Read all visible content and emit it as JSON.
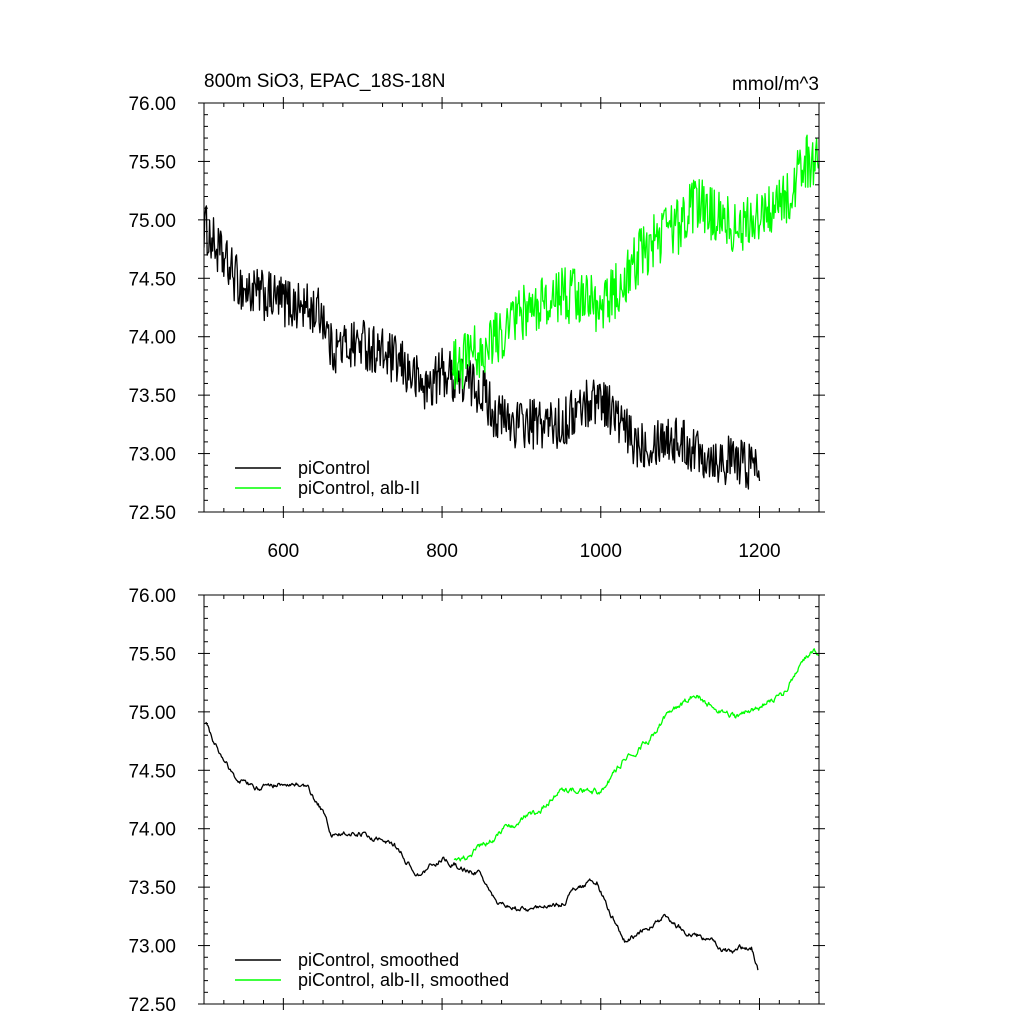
{
  "chart_data": [
    {
      "type": "line",
      "title_left": "800m SiO3, EPAC_18S-18N",
      "title_right": "mmol/m^3",
      "xlabel": "",
      "ylabel": "",
      "xlim": [
        500,
        1275
      ],
      "ylim": [
        72.5,
        76.0
      ],
      "x_ticks": [
        600,
        800,
        1000,
        1200
      ],
      "x_tick_labels": [
        "600",
        "800",
        "1000",
        "1200"
      ],
      "y_ticks": [
        72.5,
        73.0,
        73.5,
        74.0,
        74.5,
        75.0,
        75.5,
        76.0
      ],
      "y_tick_labels": [
        "72.50",
        "73.00",
        "73.50",
        "74.00",
        "74.50",
        "75.00",
        "75.50",
        "76.00"
      ],
      "legend_position": "bottom-left",
      "series": [
        {
          "name": "piControl",
          "color": "#000000",
          "x_range": [
            500,
            1200
          ],
          "anchors": [
            [
              500,
              74.95
            ],
            [
              520,
              74.7
            ],
            [
              550,
              74.4
            ],
            [
              600,
              74.3
            ],
            [
              650,
              74.2
            ],
            [
              660,
              73.9
            ],
            [
              700,
              73.95
            ],
            [
              750,
              73.75
            ],
            [
              780,
              73.55
            ],
            [
              800,
              73.7
            ],
            [
              850,
              73.55
            ],
            [
              870,
              73.3
            ],
            [
              900,
              73.25
            ],
            [
              950,
              73.25
            ],
            [
              975,
              73.4
            ],
            [
              1000,
              73.5
            ],
            [
              1020,
              73.3
            ],
            [
              1040,
              73.1
            ],
            [
              1060,
              73.1
            ],
            [
              1080,
              73.15
            ],
            [
              1100,
              73.1
            ],
            [
              1150,
              72.95
            ],
            [
              1200,
              72.9
            ]
          ],
          "noise": 0.22
        },
        {
          "name": "piControl, alb-II",
          "color": "#00ff00",
          "x_range": [
            813,
            1275
          ],
          "anchors": [
            [
              813,
              73.75
            ],
            [
              830,
              73.8
            ],
            [
              850,
              73.9
            ],
            [
              900,
              74.2
            ],
            [
              950,
              74.35
            ],
            [
              980,
              74.35
            ],
            [
              1000,
              74.25
            ],
            [
              1020,
              74.4
            ],
            [
              1050,
              74.7
            ],
            [
              1080,
              74.9
            ],
            [
              1100,
              74.95
            ],
            [
              1120,
              75.15
            ],
            [
              1140,
              75.05
            ],
            [
              1170,
              74.95
            ],
            [
              1200,
              75.0
            ],
            [
              1230,
              75.15
            ],
            [
              1260,
              75.5
            ],
            [
              1275,
              75.5
            ]
          ],
          "noise": 0.24
        }
      ]
    },
    {
      "type": "line",
      "title_left": "",
      "title_right": "",
      "xlabel": "",
      "ylabel": "",
      "xlim": [
        500,
        1275
      ],
      "ylim": [
        72.5,
        76.0
      ],
      "x_ticks": [
        600,
        800,
        1000,
        1200
      ],
      "x_tick_labels": [],
      "y_ticks": [
        72.5,
        73.0,
        73.5,
        74.0,
        74.5,
        75.0,
        75.5,
        76.0
      ],
      "y_tick_labels": [
        "72.50",
        "73.00",
        "73.50",
        "74.00",
        "74.50",
        "75.00",
        "75.50",
        "76.00"
      ],
      "legend_position": "bottom-left",
      "series": [
        {
          "name": "piControl, smoothed",
          "color": "#000000",
          "x_range": [
            502,
            1198
          ],
          "anchors": [
            [
              502,
              74.9
            ],
            [
              520,
              74.65
            ],
            [
              545,
              74.4
            ],
            [
              570,
              74.35
            ],
            [
              600,
              74.4
            ],
            [
              630,
              74.35
            ],
            [
              650,
              74.15
            ],
            [
              660,
              73.95
            ],
            [
              700,
              73.95
            ],
            [
              740,
              73.85
            ],
            [
              770,
              73.6
            ],
            [
              800,
              73.75
            ],
            [
              850,
              73.6
            ],
            [
              870,
              73.35
            ],
            [
              900,
              73.3
            ],
            [
              950,
              73.35
            ],
            [
              970,
              73.5
            ],
            [
              995,
              73.55
            ],
            [
              1010,
              73.3
            ],
            [
              1030,
              73.05
            ],
            [
              1060,
              73.15
            ],
            [
              1080,
              73.25
            ],
            [
              1110,
              73.1
            ],
            [
              1140,
              73.05
            ],
            [
              1160,
              72.95
            ],
            [
              1190,
              73.0
            ],
            [
              1198,
              72.8
            ]
          ],
          "noise": 0.035
        },
        {
          "name": "piControl, alb-II, smoothed",
          "color": "#00ff00",
          "x_range": [
            815,
            1275
          ],
          "anchors": [
            [
              815,
              73.75
            ],
            [
              830,
              73.75
            ],
            [
              850,
              73.85
            ],
            [
              880,
              74.0
            ],
            [
              920,
              74.15
            ],
            [
              950,
              74.3
            ],
            [
              975,
              74.35
            ],
            [
              1000,
              74.3
            ],
            [
              1010,
              74.4
            ],
            [
              1030,
              74.6
            ],
            [
              1060,
              74.75
            ],
            [
              1080,
              74.95
            ],
            [
              1100,
              75.05
            ],
            [
              1120,
              75.15
            ],
            [
              1140,
              75.05
            ],
            [
              1170,
              74.95
            ],
            [
              1200,
              75.05
            ],
            [
              1230,
              75.15
            ],
            [
              1250,
              75.4
            ],
            [
              1265,
              75.5
            ],
            [
              1275,
              75.5
            ]
          ],
          "noise": 0.04
        }
      ]
    }
  ]
}
